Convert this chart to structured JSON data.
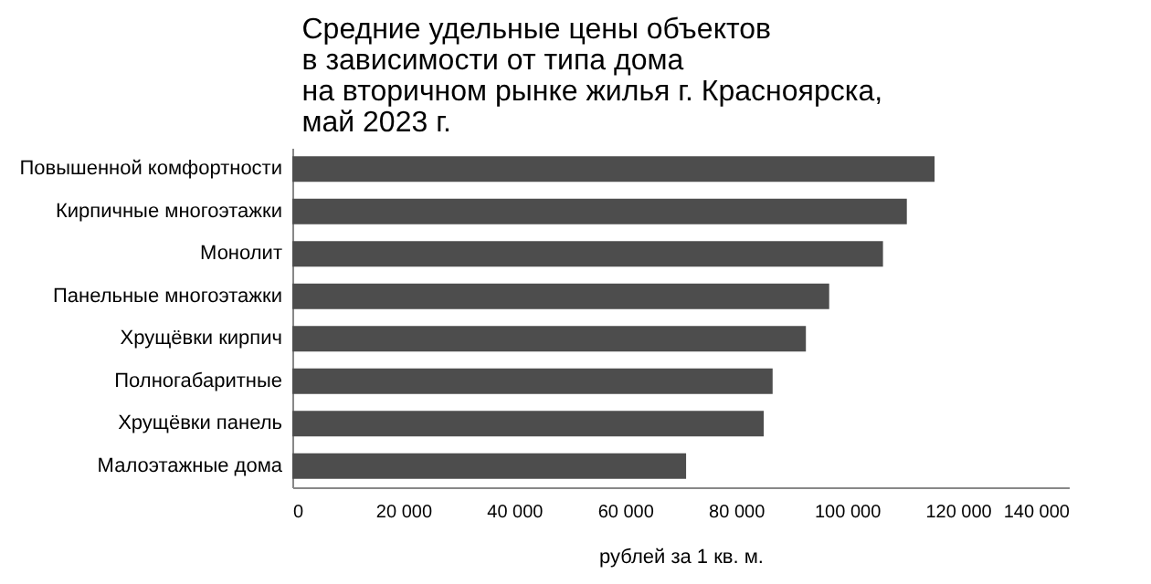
{
  "chart_data": {
    "type": "bar",
    "orientation": "horizontal",
    "title": "Средние удельные цены объектов\nв зависимости от типа дома\nна вторичном рынке жилья г. Красноярска,\nмай 2023 г.",
    "xlabel": "рублей за 1 кв. м.",
    "categories": [
      "Повышенной комфортности",
      "Кирпичные многоэтажки",
      "Монолит",
      "Панельные многоэтажки",
      "Хрущёвки кирпич",
      "Полногабаритные",
      "Хрущёвки панель",
      "Малоэтажные дома"
    ],
    "values": [
      115800,
      110800,
      106500,
      96800,
      92600,
      86600,
      85000,
      71000
    ],
    "color": "#4d4d4d",
    "xlim": [
      0,
      140000
    ],
    "xticks": [
      {
        "value": 0,
        "label": "0"
      },
      {
        "value": 20000,
        "label": "20 000"
      },
      {
        "value": 40000,
        "label": "40 000"
      },
      {
        "value": 60000,
        "label": "60 000"
      },
      {
        "value": 80000,
        "label": "80 000"
      },
      {
        "value": 100000,
        "label": "100 000"
      },
      {
        "value": 120000,
        "label": "120 000"
      },
      {
        "value": 140000,
        "label": "140 000"
      }
    ],
    "grid": false
  }
}
